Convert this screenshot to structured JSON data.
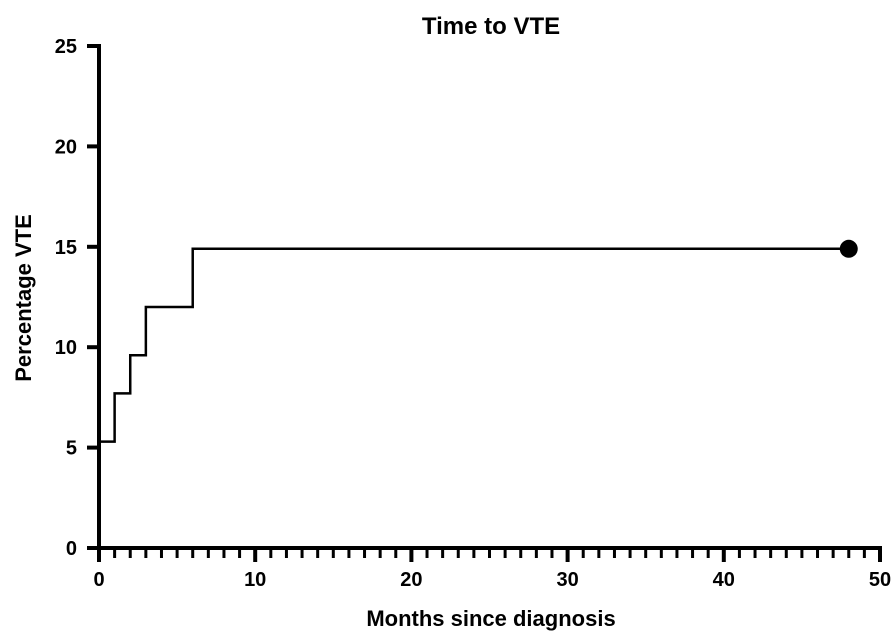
{
  "chart_data": {
    "type": "line",
    "title": "Time to VTE",
    "xlabel": "Months since diagnosis",
    "ylabel": "Percentage VTE",
    "xlim": [
      0,
      50
    ],
    "ylim": [
      0,
      25
    ],
    "x_ticks": [
      "0",
      "10",
      "20",
      "30",
      "40",
      "50"
    ],
    "y_ticks": [
      "0",
      "5",
      "10",
      "15",
      "20",
      "25"
    ],
    "x_minor_step": 1,
    "step_style": "post",
    "grid": false,
    "series": [
      {
        "x": [
          0,
          1,
          2,
          3,
          6,
          48
        ],
        "y": [
          5.3,
          7.7,
          9.6,
          12.0,
          14.9,
          14.9
        ],
        "end_marker": "filled-circle"
      }
    ]
  }
}
